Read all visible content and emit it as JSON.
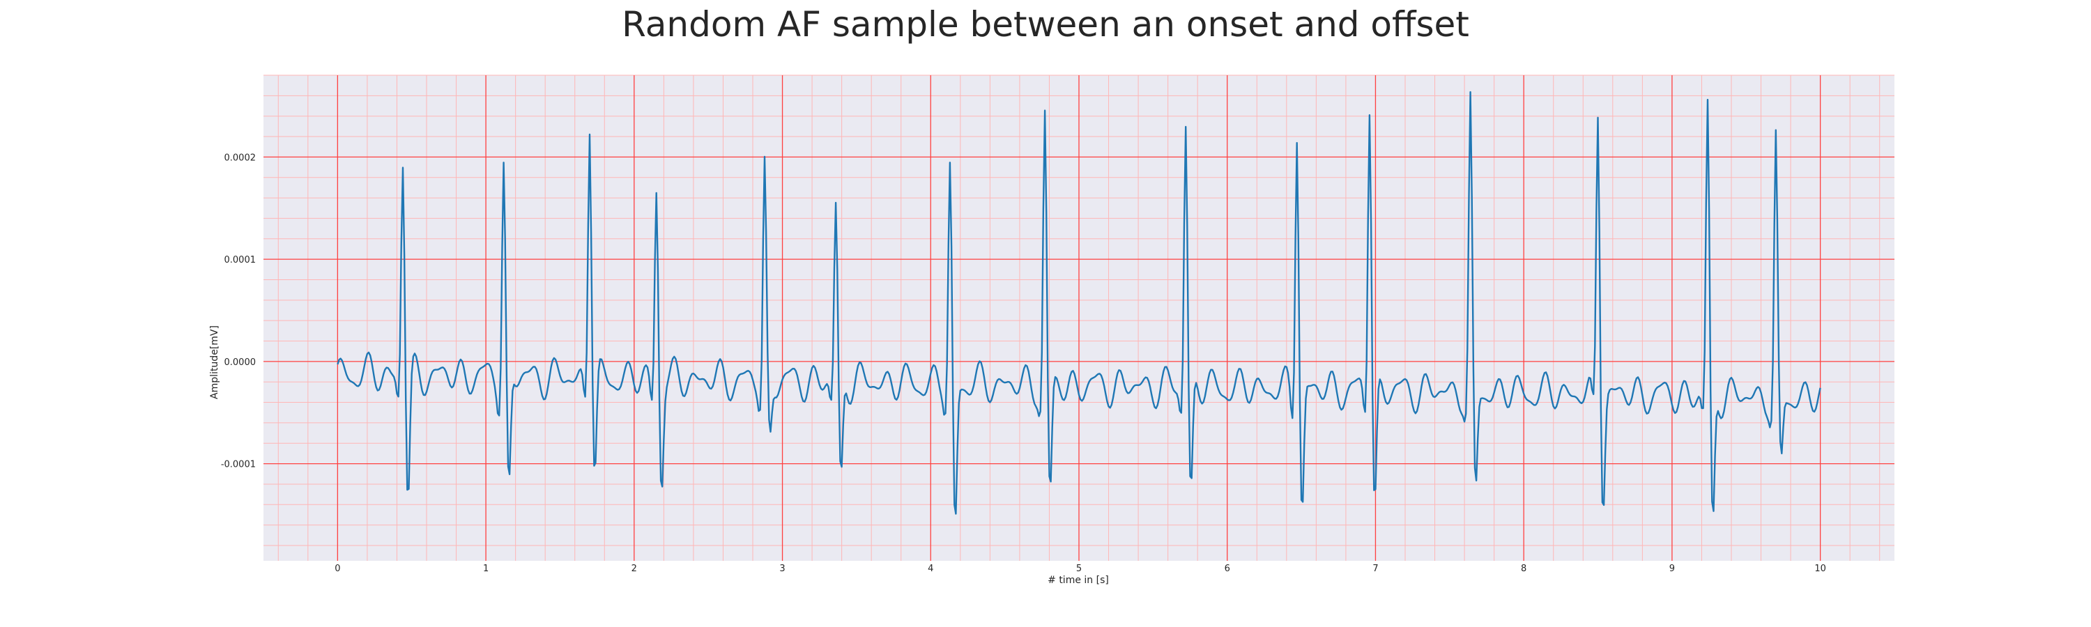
{
  "chart_data": {
    "type": "line",
    "title": "Random AF sample between an onset and offset",
    "xlabel": "# time in [s]",
    "ylabel": "Amplitude[mV]",
    "xlim": [
      -0.5,
      10.5
    ],
    "ylim": [
      -0.000195,
      0.00028
    ],
    "x_ticks": [
      0,
      1,
      2,
      3,
      4,
      5,
      6,
      7,
      8,
      9,
      10
    ],
    "y_ticks": [
      0.0002,
      0.0001,
      0.0,
      -0.0001
    ],
    "y_tick_labels": [
      "0.0002",
      "0.0001",
      "0.0000",
      "-0.0001"
    ],
    "grid": true,
    "colors": {
      "background": "#eaeaf2",
      "major_grid": "#ff4040",
      "minor_grid": "#ffb6b6",
      "line": "#1f77b4",
      "text": "#262626"
    },
    "series": [
      {
        "color": "#1f77b4",
        "sampling_interval_s": 0.01,
        "duration_s": 10.0,
        "beats": [
          {
            "t": 0.44,
            "peak": 0.0002,
            "trough": -0.000142
          },
          {
            "t": 1.12,
            "peak": 0.000196,
            "trough": -0.000138
          },
          {
            "t": 1.7,
            "peak": 0.000242,
            "trough": -0.000115
          },
          {
            "t": 2.15,
            "peak": 0.000174,
            "trough": -0.000126
          },
          {
            "t": 2.88,
            "peak": 0.000191,
            "trough": -8e-05
          },
          {
            "t": 3.36,
            "peak": 0.000153,
            "trough": -0.000125
          },
          {
            "t": 4.13,
            "peak": 0.000189,
            "trough": -0.000173
          },
          {
            "t": 4.77,
            "peak": 0.000243,
            "trough": -0.000142
          },
          {
            "t": 5.72,
            "peak": 0.000239,
            "trough": -0.000139
          },
          {
            "t": 6.47,
            "peak": 0.000234,
            "trough": -0.000157
          },
          {
            "t": 6.96,
            "peak": 0.00026,
            "trough": -0.000147
          },
          {
            "t": 7.64,
            "peak": 0.000247,
            "trough": -0.000137
          },
          {
            "t": 8.5,
            "peak": 0.00025,
            "trough": -0.00014
          },
          {
            "t": 9.24,
            "peak": 0.000251,
            "trough": -0.000172
          },
          {
            "t": 9.7,
            "peak": 0.00021,
            "trough": -0.000107
          }
        ],
        "baseline_start": -1.2e-05,
        "baseline_end": -3.5e-05,
        "atrial_amplitude": 2.2e-05
      }
    ]
  }
}
